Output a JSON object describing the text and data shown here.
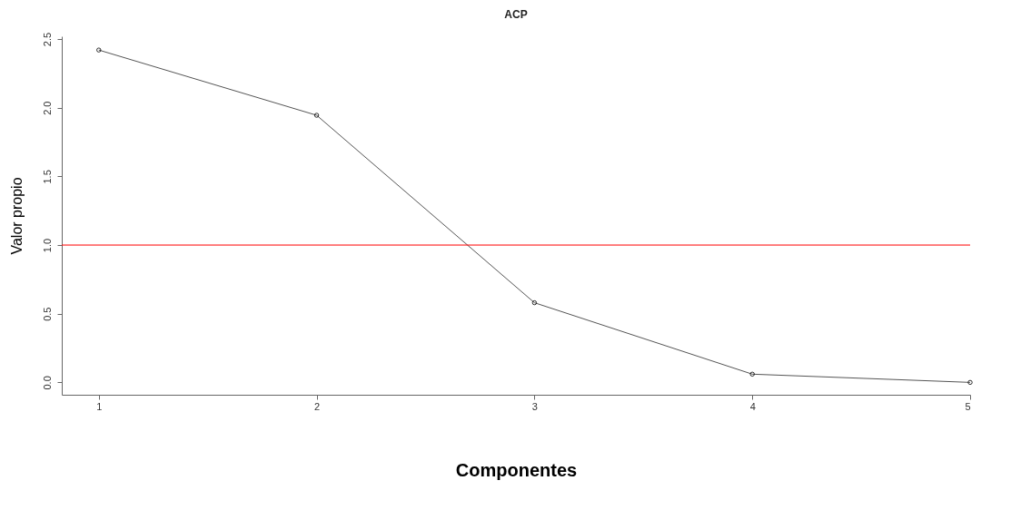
{
  "chart_data": {
    "type": "line",
    "title": "ACP",
    "xlabel": "Componentes",
    "ylabel": "Valor propio",
    "x": [
      1,
      2,
      3,
      4,
      5
    ],
    "series": [
      {
        "color": "#555555",
        "values": [
          2.42,
          1.945,
          0.58,
          0.06,
          0.0
        ]
      }
    ],
    "xlim": [
      0.83,
      5
    ],
    "xticks": [
      1,
      2,
      3,
      4,
      5
    ],
    "ylim": [
      -0.09,
      2.52
    ],
    "yticks": [
      {
        "value": 0,
        "label": "0.0"
      },
      0.5,
      {
        "value": 1,
        "label": "1.0"
      },
      1.5,
      {
        "value": 2,
        "label": "2.0"
      },
      2.5
    ],
    "ref_lines": [
      {
        "axis": "y",
        "value": 1,
        "color": "#ff0000"
      }
    ],
    "marker": "circle",
    "line_style": "solid",
    "grid": false
  }
}
